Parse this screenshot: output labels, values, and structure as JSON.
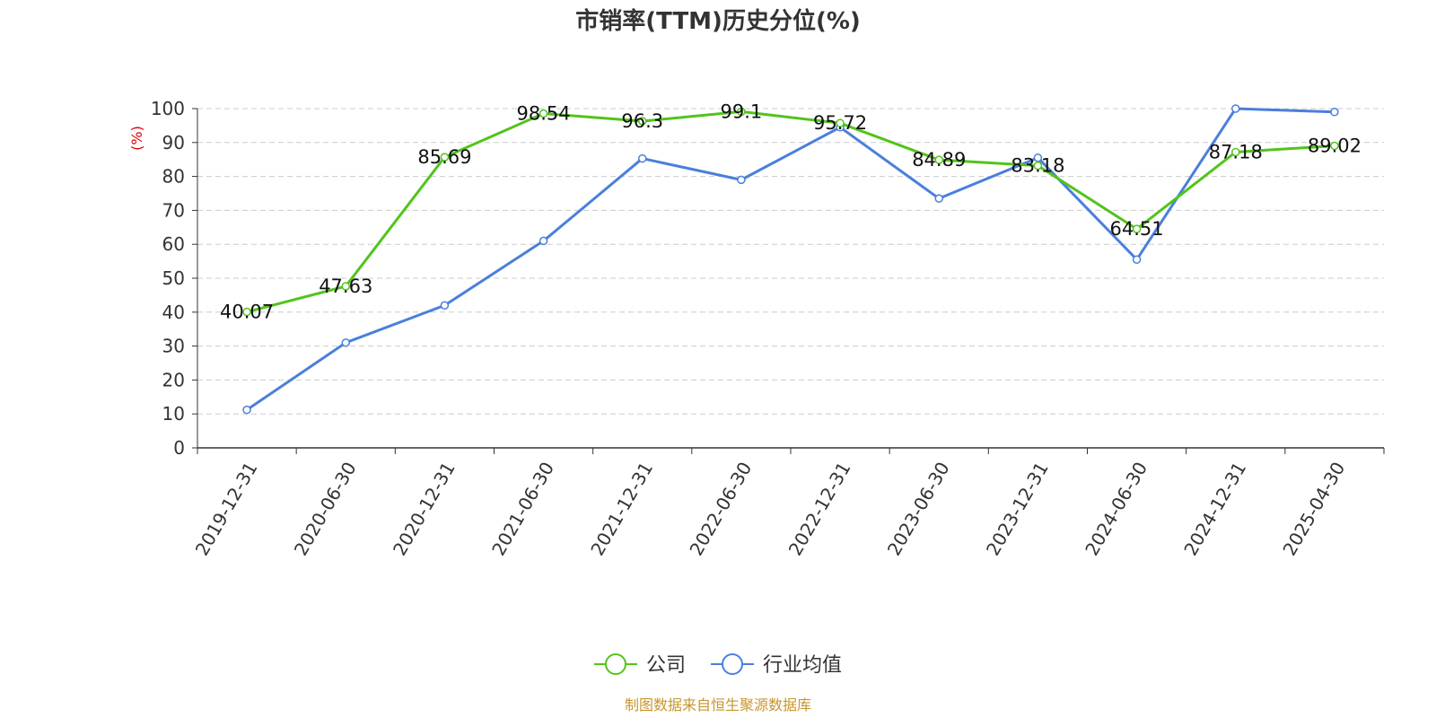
{
  "colors": {
    "company": "#52c41a",
    "industry": "#4a7fdc",
    "unit_label": "#e0000b",
    "source": "#c8962c",
    "grid": "#cccccc",
    "axis": "#333333"
  },
  "source_text": "制图数据来自恒生聚源数据库",
  "chart_data": {
    "type": "line",
    "title": "市销率(TTM)历史分位(%)",
    "ylabel": "(%)",
    "xlabel": "",
    "ylim": [
      0,
      100
    ],
    "yticks": [
      "0",
      "10",
      "20",
      "30",
      "40",
      "50",
      "60",
      "70",
      "80",
      "90",
      "100"
    ],
    "grid": true,
    "legend_position": "bottom",
    "categories": [
      "2019-12-31",
      "2020-06-30",
      "2020-12-31",
      "2021-06-30",
      "2021-12-31",
      "2022-06-30",
      "2022-12-31",
      "2023-06-30",
      "2023-12-31",
      "2024-06-30",
      "2024-12-31",
      "2025-04-30"
    ],
    "series": [
      {
        "name": "公司",
        "color": "#52c41a",
        "values": [
          40.07,
          47.63,
          85.69,
          98.54,
          96.3,
          99.1,
          95.72,
          84.89,
          83.18,
          64.51,
          87.18,
          89.02
        ],
        "labels": [
          "40.07",
          "47.63",
          "85.69",
          "98.54",
          "96.3",
          "99.1",
          "95.72",
          "84.89",
          "83.18",
          "64.51",
          "87.18",
          "89.02"
        ]
      },
      {
        "name": "行业均值",
        "color": "#4a7fdc",
        "values": [
          11.2,
          31.0,
          42.0,
          61.0,
          85.3,
          79.0,
          94.5,
          73.5,
          85.5,
          55.5,
          100.0,
          99.0
        ]
      }
    ]
  }
}
